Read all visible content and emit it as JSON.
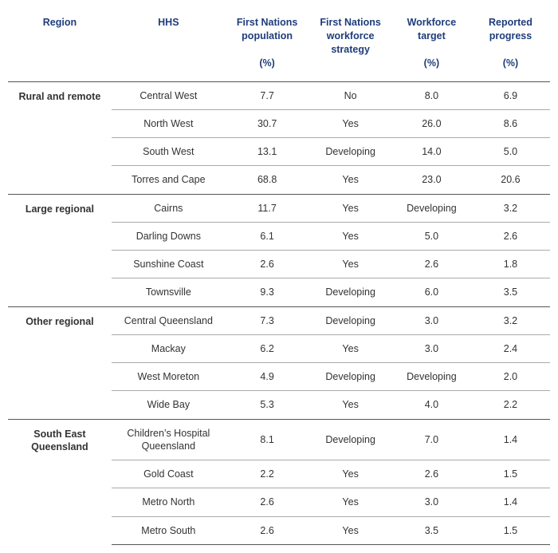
{
  "headers": {
    "region": "Region",
    "hhs": "HHS",
    "population": "First Nations population",
    "population_unit": "(%)",
    "strategy": "First Nations workforce strategy",
    "target": "Workforce target",
    "target_unit": "(%)",
    "progress": "Reported progress",
    "progress_unit": "(%)"
  },
  "groups": [
    {
      "region": "Rural and remote",
      "rows": [
        {
          "hhs": "Central West",
          "population": "7.7",
          "strategy": "No",
          "target": "8.0",
          "progress": "6.9"
        },
        {
          "hhs": "North West",
          "population": "30.7",
          "strategy": "Yes",
          "target": "26.0",
          "progress": "8.6"
        },
        {
          "hhs": "South West",
          "population": "13.1",
          "strategy": "Developing",
          "target": "14.0",
          "progress": "5.0"
        },
        {
          "hhs": "Torres and Cape",
          "population": "68.8",
          "strategy": "Yes",
          "target": "23.0",
          "progress": "20.6"
        }
      ]
    },
    {
      "region": "Large regional",
      "rows": [
        {
          "hhs": "Cairns",
          "population": "11.7",
          "strategy": "Yes",
          "target": "Developing",
          "progress": "3.2"
        },
        {
          "hhs": "Darling Downs",
          "population": "6.1",
          "strategy": "Yes",
          "target": "5.0",
          "progress": "2.6"
        },
        {
          "hhs": "Sunshine Coast",
          "population": "2.6",
          "strategy": "Yes",
          "target": "2.6",
          "progress": "1.8"
        },
        {
          "hhs": "Townsville",
          "population": "9.3",
          "strategy": "Developing",
          "target": "6.0",
          "progress": "3.5"
        }
      ]
    },
    {
      "region": "Other regional",
      "rows": [
        {
          "hhs": "Central Queensland",
          "population": "7.3",
          "strategy": "Developing",
          "target": "3.0",
          "progress": "3.2"
        },
        {
          "hhs": "Mackay",
          "population": "6.2",
          "strategy": "Yes",
          "target": "3.0",
          "progress": "2.4"
        },
        {
          "hhs": "West Moreton",
          "population": "4.9",
          "strategy": "Developing",
          "target": "Developing",
          "progress": "2.0"
        },
        {
          "hhs": "Wide Bay",
          "population": "5.3",
          "strategy": "Yes",
          "target": "4.0",
          "progress": "2.2"
        }
      ]
    },
    {
      "region": "South East Queensland",
      "rows": [
        {
          "hhs": "Children’s Hospital Queensland",
          "population": "8.1",
          "strategy": "Developing",
          "target": "7.0",
          "progress": "1.4"
        },
        {
          "hhs": "Gold Coast",
          "population": "2.2",
          "strategy": "Yes",
          "target": "2.6",
          "progress": "1.5"
        },
        {
          "hhs": "Metro North",
          "population": "2.6",
          "strategy": "Yes",
          "target": "3.0",
          "progress": "1.4"
        },
        {
          "hhs": "Metro South",
          "population": "2.6",
          "strategy": "Yes",
          "target": "3.5",
          "progress": "1.5"
        }
      ]
    }
  ],
  "style": {
    "header_color": "#1f3d7a",
    "body_text_color": "#333333",
    "group_border_color": "#555555",
    "row_border_color": "#aaaaaa",
    "background_color": "#ffffff",
    "header_fontsize_pt": 10,
    "body_fontsize_pt": 10
  }
}
